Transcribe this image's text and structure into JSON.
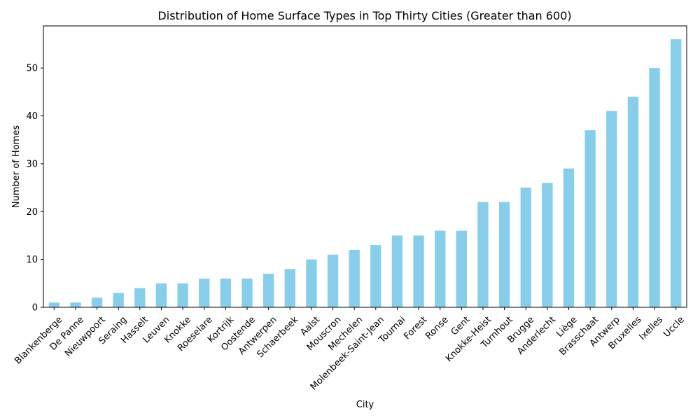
{
  "chart_data": {
    "type": "bar",
    "title": "Distribution of Home Surface Types in Top Thirty Cities (Greater than 600)",
    "xlabel": "City",
    "ylabel": "Number of Homes",
    "categories": [
      "Blankenberge",
      "De Panne",
      "Nieuwpoort",
      "Seraing",
      "Hasselt",
      "Leuven",
      "Knokke",
      "Roeselare",
      "Kortrijk",
      "Oostende",
      "Antwerpen",
      "Schaerbeek",
      "Aalst",
      "Mouscron",
      "Mechelen",
      "Molenbeek-Saint-Jean",
      "Tournai",
      "Forest",
      "Ronse",
      "Gent",
      "Knokke-Heist",
      "Turnhout",
      "Brugge",
      "Anderlecht",
      "Liège",
      "Brasschaat",
      "Antwerp",
      "Bruxelles",
      "Ixelles",
      "Uccle"
    ],
    "values": [
      1,
      1,
      2,
      3,
      4,
      5,
      5,
      6,
      6,
      6,
      7,
      8,
      10,
      11,
      12,
      13,
      15,
      15,
      16,
      16,
      22,
      22,
      25,
      26,
      29,
      37,
      41,
      44,
      50,
      56
    ],
    "ylim": [
      0,
      58.8
    ],
    "yticks": [
      0,
      10,
      20,
      30,
      40,
      50
    ],
    "bar_color": "#87CEEB",
    "grid": false,
    "legend": "none",
    "x_tick_rotation": 45
  }
}
